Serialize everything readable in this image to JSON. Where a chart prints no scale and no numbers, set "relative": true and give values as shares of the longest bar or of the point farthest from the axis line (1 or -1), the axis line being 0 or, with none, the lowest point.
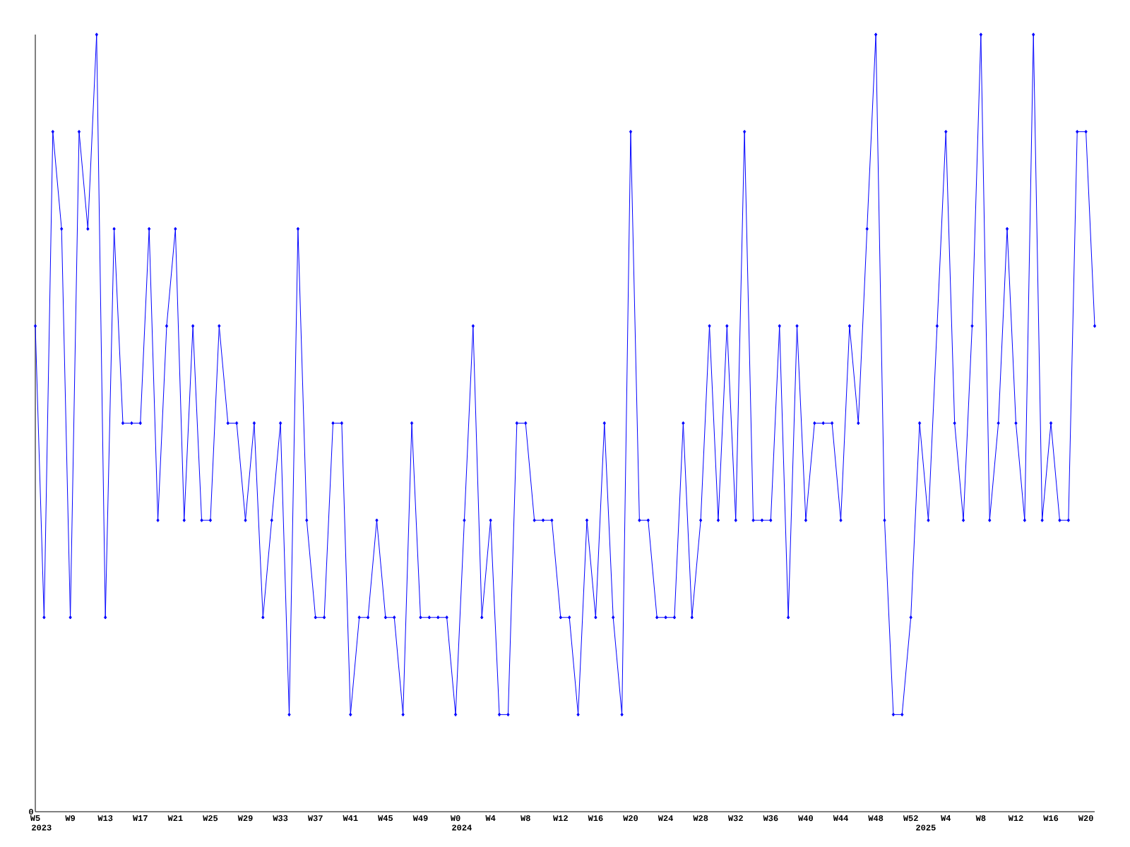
{
  "chart_data": {
    "type": "line",
    "relative": true,
    "color": "#0000ff",
    "marker": "diamond",
    "line_style": "solid",
    "grid": false,
    "categories": [
      "W5",
      null,
      null,
      null,
      "W9",
      null,
      null,
      null,
      "W13",
      null,
      null,
      null,
      "W17",
      null,
      null,
      null,
      "W21",
      null,
      null,
      null,
      "W25",
      null,
      null,
      null,
      "W29",
      null,
      null,
      null,
      "W33",
      null,
      null,
      null,
      "W37",
      null,
      null,
      null,
      "W41",
      null,
      null,
      null,
      "W45",
      null,
      null,
      null,
      "W49",
      null,
      null,
      null,
      "W0",
      null,
      null,
      null,
      "W4",
      null,
      null,
      null,
      "W8",
      null,
      null,
      null,
      "W12",
      null,
      null,
      null,
      "W16",
      null,
      null,
      null,
      "W20",
      null,
      null,
      null,
      "W24",
      null,
      null,
      null,
      "W28",
      null,
      null,
      null,
      "W32",
      null,
      null,
      null,
      "W36",
      null,
      null,
      null,
      "W40",
      null,
      null,
      null,
      "W44",
      null,
      null,
      null,
      "W48",
      null,
      null,
      null,
      "W52",
      null,
      null,
      null,
      "W4",
      null,
      null,
      null,
      "W8",
      null,
      null,
      null,
      "W12",
      null,
      null,
      null,
      "W16",
      null,
      null,
      null,
      "W20",
      null
    ],
    "values": [
      0.625,
      0.25,
      0.875,
      0.75,
      0.25,
      0.875,
      0.75,
      1,
      0.25,
      0.75,
      0.5,
      0.5,
      0.5,
      0.75,
      0.375,
      0.625,
      0.75,
      0.375,
      0.625,
      0.375,
      0.375,
      0.625,
      0.5,
      0.5,
      0.375,
      0.5,
      0.25,
      0.375,
      0.5,
      0.125,
      0.75,
      0.375,
      0.25,
      0.25,
      0.5,
      0.5,
      0.125,
      0.25,
      0.25,
      0.375,
      0.25,
      0.25,
      0.125,
      0.5,
      0.25,
      0.25,
      0.25,
      0.25,
      0.125,
      0.375,
      0.625,
      0.25,
      0.375,
      0.125,
      0.125,
      0.5,
      0.5,
      0.375,
      0.375,
      0.375,
      0.25,
      0.25,
      0.125,
      0.375,
      0.25,
      0.5,
      0.25,
      0.125,
      0.875,
      0.375,
      0.375,
      0.25,
      0.25,
      0.25,
      0.5,
      0.25,
      0.375,
      0.625,
      0.375,
      0.625,
      0.375,
      0.875,
      0.375,
      0.375,
      0.375,
      0.625,
      0.25,
      0.625,
      0.375,
      0.5,
      0.5,
      0.5,
      0.375,
      0.625,
      0.5,
      0.75,
      1,
      0.375,
      0.125,
      0.125,
      0.25,
      0.5,
      0.375,
      0.625,
      0.875,
      0.5,
      0.375,
      0.625,
      1,
      0.375,
      0.5,
      0.75,
      0.5,
      0.375,
      1,
      0.375,
      0.5,
      0.375,
      0.375,
      0.875,
      0.875,
      0.625
    ],
    "annotations": [
      "0",
      "2023",
      "2024",
      "2025"
    ]
  }
}
